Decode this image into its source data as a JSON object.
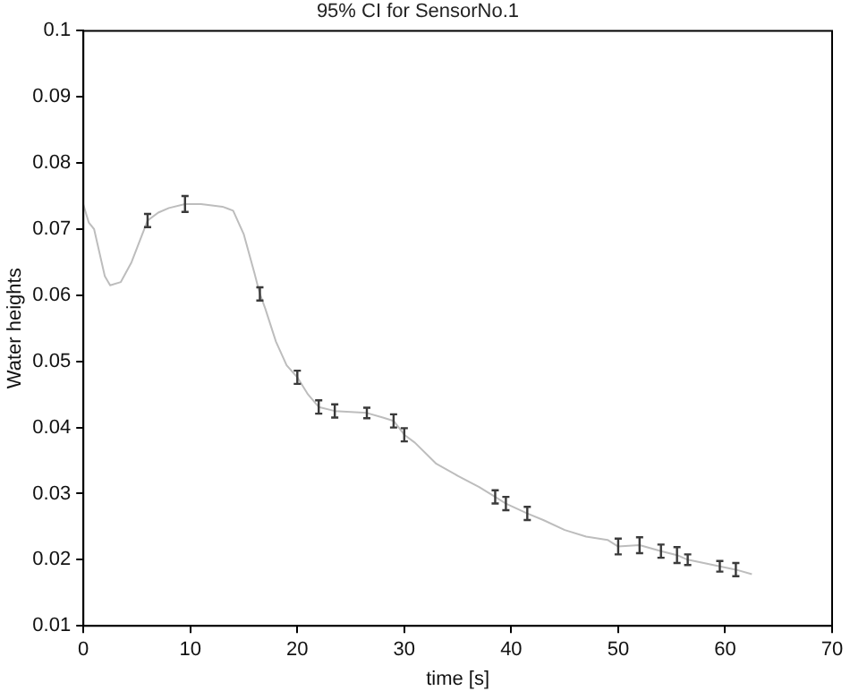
{
  "chart_data": {
    "type": "line",
    "title": "95% CI for SensorNo.1",
    "xlabel": "time [s]",
    "ylabel": "Water heights",
    "x": [
      0,
      0.5,
      1,
      2,
      2.5,
      3.5,
      4.5,
      6,
      7,
      8,
      9.5,
      11,
      13,
      14,
      15,
      16,
      16.5,
      17,
      18,
      19,
      20,
      21,
      22,
      23.5,
      26.5,
      28,
      29,
      30,
      31,
      33,
      35,
      37,
      38.5,
      39.5,
      41.5,
      43,
      45,
      47,
      49,
      50,
      52,
      54,
      55.5,
      56.5,
      59.5,
      61,
      62.5
    ],
    "series": [
      {
        "color": "#bdbdbd",
        "values": [
          0.0737,
          0.071,
          0.07,
          0.0629,
          0.0615,
          0.062,
          0.065,
          0.0713,
          0.0725,
          0.0732,
          0.0738,
          0.0738,
          0.0734,
          0.0728,
          0.0692,
          0.0633,
          0.0602,
          0.058,
          0.053,
          0.0494,
          0.0476,
          0.045,
          0.0431,
          0.0425,
          0.0422,
          0.0415,
          0.041,
          0.0389,
          0.0377,
          0.0345,
          0.0327,
          0.031,
          0.0295,
          0.0285,
          0.027,
          0.026,
          0.0245,
          0.0235,
          0.023,
          0.022,
          0.0222,
          0.0213,
          0.0207,
          0.02,
          0.019,
          0.0185,
          0.0178
        ],
        "errors": [
          null,
          null,
          null,
          null,
          null,
          null,
          null,
          0.001,
          null,
          null,
          0.0012,
          null,
          null,
          null,
          null,
          null,
          0.001,
          null,
          null,
          null,
          0.001,
          null,
          0.001,
          0.001,
          0.0008,
          null,
          0.001,
          0.001,
          null,
          null,
          null,
          null,
          0.001,
          0.001,
          0.001,
          null,
          null,
          null,
          null,
          0.0012,
          0.0012,
          0.001,
          0.0012,
          0.0008,
          0.0008,
          0.001,
          null
        ]
      }
    ],
    "xlim": [
      0,
      70
    ],
    "xticks": [
      0,
      10,
      20,
      30,
      40,
      50,
      60,
      70
    ],
    "ylim": [
      0.01,
      0.1
    ],
    "yticks": [
      0.01,
      0.02,
      0.03,
      0.04,
      0.05,
      0.06,
      0.07,
      0.08,
      0.09,
      0.1
    ],
    "grid": false,
    "legend": false,
    "marker": "none",
    "line_style": "solid"
  }
}
